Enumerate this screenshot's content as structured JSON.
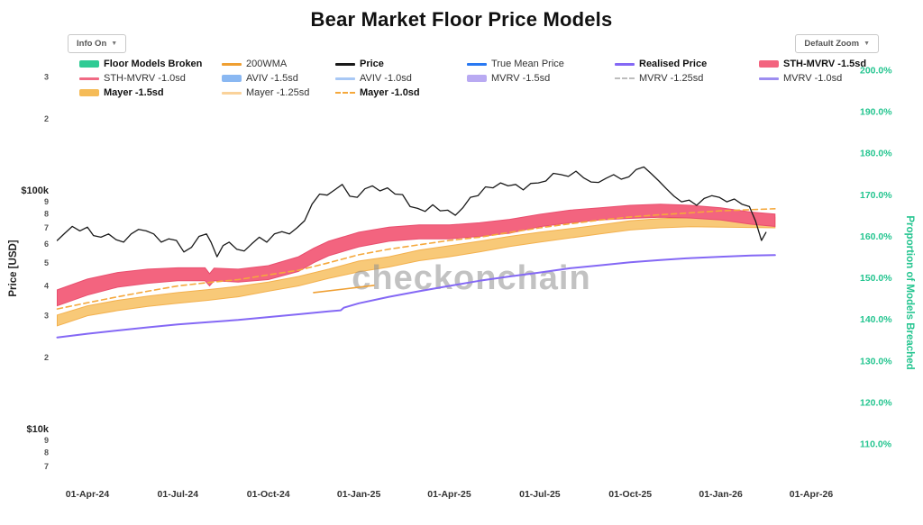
{
  "title": "Bear Market Floor Price Models",
  "controls": {
    "info_label": "Info On",
    "zoom_label": "Default Zoom",
    "caret": "▼"
  },
  "watermark": "checkonchain",
  "colors": {
    "accent_green": "#25c590",
    "background": "#ffffff"
  },
  "legend": {
    "rows": [
      [
        {
          "label": "Floor Models Broken",
          "swatch": "band",
          "color": "#2fcb94",
          "bold": true
        },
        {
          "label": "200WMA",
          "swatch": "line",
          "color": "#ef9f32",
          "bold": false
        },
        {
          "label": "Price",
          "swatch": "line",
          "color": "#1a1a1a",
          "bold": true
        },
        {
          "label": "True Mean Price",
          "swatch": "line",
          "color": "#2979f2",
          "bold": false
        },
        {
          "label": "Realised Price",
          "swatch": "line",
          "color": "#8468f5",
          "bold": true
        },
        {
          "label": "STH-MVRV -1.5sd",
          "swatch": "band",
          "color": "#f3647f",
          "bold": true
        }
      ],
      [
        {
          "label": "STH-MVRV -1.0sd",
          "swatch": "line",
          "color": "#f06a84",
          "bold": false
        },
        {
          "label": "AVIV -1.5sd",
          "swatch": "band",
          "color": "#8ab8f2",
          "bold": false
        },
        {
          "label": "AVIV -1.0sd",
          "swatch": "line",
          "color": "#a8c8f5",
          "bold": false
        },
        {
          "label": "MVRV -1.5sd",
          "swatch": "band",
          "color": "#b9aaf2",
          "bold": false
        },
        {
          "label": "MVRV -1.25sd",
          "swatch": "dash",
          "color": "#bdbdbd",
          "bold": false
        },
        {
          "label": "MVRV -1.0sd",
          "swatch": "line",
          "color": "#9d8df0",
          "bold": false
        }
      ],
      [
        {
          "label": "Mayer -1.5sd",
          "swatch": "band",
          "color": "#f5bb57",
          "bold": true
        },
        {
          "label": "Mayer -1.25sd",
          "swatch": "line",
          "color": "#fad29a",
          "bold": false
        },
        {
          "label": "Mayer -1.0sd",
          "swatch": "dash",
          "color": "#f5a83c",
          "bold": true
        }
      ]
    ]
  },
  "axes": {
    "x": {
      "ticks": [
        {
          "label": "01-Apr-24",
          "t": 1
        },
        {
          "label": "01-Jul-24",
          "t": 4
        },
        {
          "label": "01-Oct-24",
          "t": 7
        },
        {
          "label": "01-Jan-25",
          "t": 10
        },
        {
          "label": "01-Apr-25",
          "t": 13
        },
        {
          "label": "01-Jul-25",
          "t": 16
        },
        {
          "label": "01-Oct-25",
          "t": 19
        },
        {
          "label": "01-Jan-26",
          "t": 22
        },
        {
          "label": "01-Apr-26",
          "t": 25
        }
      ]
    },
    "y_left": {
      "title": "Price [USD]",
      "scale": "log",
      "ticks": [
        {
          "label": "3",
          "value": 300000,
          "minor": true
        },
        {
          "label": "2",
          "value": 200000,
          "minor": true
        },
        {
          "label": "$100k",
          "value": 100000,
          "minor": false
        },
        {
          "label": "9",
          "value": 90000,
          "minor": true
        },
        {
          "label": "8",
          "value": 80000,
          "minor": true
        },
        {
          "label": "7",
          "value": 70000,
          "minor": true
        },
        {
          "label": "6",
          "value": 60000,
          "minor": true
        },
        {
          "label": "5",
          "value": 50000,
          "minor": true
        },
        {
          "label": "4",
          "value": 40000,
          "minor": true
        },
        {
          "label": "3",
          "value": 30000,
          "minor": true
        },
        {
          "label": "2",
          "value": 20000,
          "minor": true
        },
        {
          "label": "$10k",
          "value": 10000,
          "minor": false
        },
        {
          "label": "9",
          "value": 9000,
          "minor": true
        },
        {
          "label": "8",
          "value": 8000,
          "minor": true
        },
        {
          "label": "7",
          "value": 7000,
          "minor": true
        }
      ]
    },
    "y_right": {
      "title": "Proportion of Models Breached",
      "color": "#25c590",
      "unit": "%",
      "ticks": [
        {
          "label": "200.0%",
          "value": 200
        },
        {
          "label": "190.0%",
          "value": 190
        },
        {
          "label": "180.0%",
          "value": 180
        },
        {
          "label": "170.0%",
          "value": 170
        },
        {
          "label": "160.0%",
          "value": 160
        },
        {
          "label": "150.0%",
          "value": 150
        },
        {
          "label": "140.0%",
          "value": 140
        },
        {
          "label": "130.0%",
          "value": 130
        },
        {
          "label": "120.0%",
          "value": 120
        },
        {
          "label": "110.0%",
          "value": 110
        }
      ]
    }
  },
  "chart_data": {
    "type": "line",
    "title": "Bear Market Floor Price Models",
    "x_unit": "months since 01-Mar-2024",
    "value_unit": "USD thousands",
    "y_scale": "log",
    "y_range_usd": [
      6000,
      375000
    ],
    "ylabel_left": "Price [USD]",
    "ylabel_right": "Proportion of Models Breached",
    "series": [
      {
        "name": "Mayer -1.5sd to -1.25sd",
        "type": "band",
        "fill": "#f8c978",
        "stroke": "#f3b14e",
        "points": [
          [
            0,
            27.2,
            30.2
          ],
          [
            1,
            30,
            33
          ],
          [
            2,
            31.5,
            34.8
          ],
          [
            3,
            32.8,
            36.2
          ],
          [
            4,
            33.8,
            37.5
          ],
          [
            5,
            34.8,
            38.6
          ],
          [
            6,
            36,
            39.8
          ],
          [
            7,
            38,
            41.5
          ],
          [
            8,
            40,
            43.8
          ],
          [
            9,
            43,
            47
          ],
          [
            10,
            45.8,
            50.8
          ],
          [
            11,
            48,
            53
          ],
          [
            12,
            51,
            56.5
          ],
          [
            13,
            53,
            58.9
          ],
          [
            14,
            55.5,
            61.5
          ],
          [
            15,
            58.5,
            64.5
          ],
          [
            16,
            61,
            67.1
          ],
          [
            17,
            63.5,
            69.5
          ],
          [
            18,
            66,
            72
          ],
          [
            19,
            68.6,
            75
          ],
          [
            20,
            70,
            76.5
          ],
          [
            21,
            70.8,
            77.2
          ],
          [
            22,
            70.5,
            77.8
          ],
          [
            23,
            70.3,
            77.8
          ],
          [
            23.8,
            70,
            77.5
          ]
        ]
      },
      {
        "name": "STH-MVRV -1.5sd to -1.0sd",
        "type": "band",
        "fill": "#f3647f",
        "stroke": "#e94e6e",
        "points": [
          [
            0,
            33,
            38.5
          ],
          [
            1,
            36.6,
            42.7
          ],
          [
            2,
            39.5,
            45.5
          ],
          [
            3,
            41,
            47
          ],
          [
            4,
            42,
            47.6
          ],
          [
            4.9,
            42,
            47.6
          ],
          [
            5.05,
            40,
            45
          ],
          [
            5.2,
            42,
            47.5
          ],
          [
            6,
            41.5,
            47
          ],
          [
            7,
            42.5,
            48.6
          ],
          [
            8,
            46,
            53
          ],
          [
            8.5,
            50,
            57.5
          ],
          [
            9,
            53.5,
            61.5
          ],
          [
            10,
            58.3,
            67.1
          ],
          [
            11,
            61.5,
            70.5
          ],
          [
            12,
            63,
            72
          ],
          [
            13,
            63,
            72
          ],
          [
            14,
            64.5,
            73.5
          ],
          [
            15,
            66.5,
            76
          ],
          [
            16,
            70.8,
            79.8
          ],
          [
            17,
            73.5,
            83
          ],
          [
            18,
            75.5,
            85
          ],
          [
            19,
            76.7,
            87
          ],
          [
            20,
            77.5,
            88
          ],
          [
            21,
            77,
            87
          ],
          [
            22,
            75.5,
            85
          ],
          [
            23,
            72.5,
            81.5
          ],
          [
            23.8,
            71,
            80
          ]
        ]
      },
      {
        "name": "200WMA",
        "type": "line",
        "color": "#ef9f32",
        "width": 1.6,
        "points": [
          [
            8.5,
            37.5
          ],
          [
            9.5,
            38.8
          ],
          [
            10.5,
            40.2
          ]
        ]
      },
      {
        "name": "Mayer -1.0sd",
        "type": "line",
        "dash": "6 4",
        "color": "#f5a83c",
        "width": 1.6,
        "points": [
          [
            0,
            32
          ],
          [
            1,
            34
          ],
          [
            2,
            36
          ],
          [
            3,
            38
          ],
          [
            4,
            40
          ],
          [
            5,
            41.3
          ],
          [
            6,
            42.5
          ],
          [
            7,
            44.5
          ],
          [
            8,
            46.5
          ],
          [
            9,
            50
          ],
          [
            10,
            54
          ],
          [
            11,
            57
          ],
          [
            12,
            59.5
          ],
          [
            13,
            62
          ],
          [
            14,
            64
          ],
          [
            15,
            67
          ],
          [
            16,
            70
          ],
          [
            17,
            72.8
          ],
          [
            18,
            75.5
          ],
          [
            19,
            77.8
          ],
          [
            20,
            79.5
          ],
          [
            21,
            81
          ],
          [
            22,
            82.5
          ],
          [
            23,
            83.5
          ],
          [
            23.8,
            84.2
          ]
        ]
      },
      {
        "name": "Realised Price",
        "type": "line",
        "color": "#8468f5",
        "width": 2,
        "points": [
          [
            0,
            24.3
          ],
          [
            1,
            25.2
          ],
          [
            2,
            26
          ],
          [
            3,
            26.8
          ],
          [
            4,
            27.6
          ],
          [
            5,
            28.2
          ],
          [
            6,
            28.8
          ],
          [
            7,
            29.6
          ],
          [
            8,
            30.4
          ],
          [
            9,
            31.3
          ],
          [
            9.4,
            31.6
          ],
          [
            9.5,
            32.4
          ],
          [
            10,
            33.8
          ],
          [
            11,
            36
          ],
          [
            12,
            38
          ],
          [
            13,
            40
          ],
          [
            14,
            42
          ],
          [
            15,
            43.8
          ],
          [
            16,
            45.5
          ],
          [
            17,
            47.4
          ],
          [
            18,
            48.8
          ],
          [
            19,
            50.2
          ],
          [
            20,
            51.3
          ],
          [
            21,
            52.3
          ],
          [
            22,
            53
          ],
          [
            23,
            53.6
          ],
          [
            23.8,
            53.8
          ]
        ]
      },
      {
        "name": "Price",
        "type": "line",
        "color": "#1a1a1a",
        "width": 1.3,
        "points": [
          [
            0,
            62
          ],
          [
            0.25,
            66.5
          ],
          [
            0.5,
            71
          ],
          [
            0.75,
            68
          ],
          [
            1,
            70.5
          ],
          [
            1.2,
            65
          ],
          [
            1.45,
            64
          ],
          [
            1.7,
            66
          ],
          [
            1.95,
            62.5
          ],
          [
            2.2,
            61
          ],
          [
            2.45,
            66
          ],
          [
            2.7,
            69
          ],
          [
            2.95,
            68
          ],
          [
            3.2,
            66
          ],
          [
            3.45,
            61
          ],
          [
            3.7,
            63
          ],
          [
            3.95,
            62
          ],
          [
            4.2,
            55.5
          ],
          [
            4.45,
            58
          ],
          [
            4.7,
            64.5
          ],
          [
            4.95,
            66
          ],
          [
            5.1,
            61
          ],
          [
            5.3,
            53
          ],
          [
            5.5,
            59
          ],
          [
            5.7,
            61
          ],
          [
            5.95,
            57
          ],
          [
            6.2,
            56
          ],
          [
            6.45,
            60
          ],
          [
            6.7,
            64
          ],
          [
            6.95,
            61
          ],
          [
            7.2,
            66
          ],
          [
            7.45,
            67.5
          ],
          [
            7.7,
            66
          ],
          [
            7.95,
            70
          ],
          [
            8.2,
            75
          ],
          [
            8.45,
            88
          ],
          [
            8.7,
            97
          ],
          [
            8.95,
            96
          ],
          [
            9.2,
            101
          ],
          [
            9.45,
            106.5
          ],
          [
            9.7,
            95
          ],
          [
            9.95,
            94
          ],
          [
            10.2,
            102
          ],
          [
            10.45,
            105
          ],
          [
            10.7,
            100
          ],
          [
            10.95,
            103
          ],
          [
            11.2,
            97
          ],
          [
            11.45,
            96.5
          ],
          [
            11.7,
            86
          ],
          [
            11.95,
            84.5
          ],
          [
            12.2,
            82
          ],
          [
            12.45,
            87.5
          ],
          [
            12.7,
            82.5
          ],
          [
            12.95,
            83
          ],
          [
            13.2,
            79
          ],
          [
            13.45,
            85
          ],
          [
            13.7,
            94
          ],
          [
            13.95,
            95.5
          ],
          [
            14.2,
            104
          ],
          [
            14.45,
            103
          ],
          [
            14.7,
            108
          ],
          [
            14.95,
            105
          ],
          [
            15.2,
            106.5
          ],
          [
            15.45,
            101
          ],
          [
            15.7,
            107.5
          ],
          [
            15.95,
            108
          ],
          [
            16.2,
            110
          ],
          [
            16.45,
            118.5
          ],
          [
            16.7,
            117
          ],
          [
            16.95,
            115
          ],
          [
            17.2,
            121
          ],
          [
            17.45,
            113.5
          ],
          [
            17.7,
            109
          ],
          [
            17.95,
            108.5
          ],
          [
            18.2,
            113
          ],
          [
            18.45,
            117
          ],
          [
            18.7,
            112
          ],
          [
            18.95,
            114.5
          ],
          [
            19.2,
            123
          ],
          [
            19.45,
            126
          ],
          [
            19.7,
            118
          ],
          [
            19.95,
            110
          ],
          [
            20.2,
            102
          ],
          [
            20.45,
            95
          ],
          [
            20.7,
            90
          ],
          [
            20.95,
            91.5
          ],
          [
            21.2,
            87
          ],
          [
            21.45,
            93
          ],
          [
            21.7,
            95.5
          ],
          [
            21.95,
            94
          ],
          [
            22.2,
            90
          ],
          [
            22.45,
            92.5
          ],
          [
            22.7,
            88
          ],
          [
            22.95,
            86
          ],
          [
            23.15,
            75
          ],
          [
            23.35,
            62
          ],
          [
            23.5,
            67
          ]
        ]
      }
    ]
  }
}
